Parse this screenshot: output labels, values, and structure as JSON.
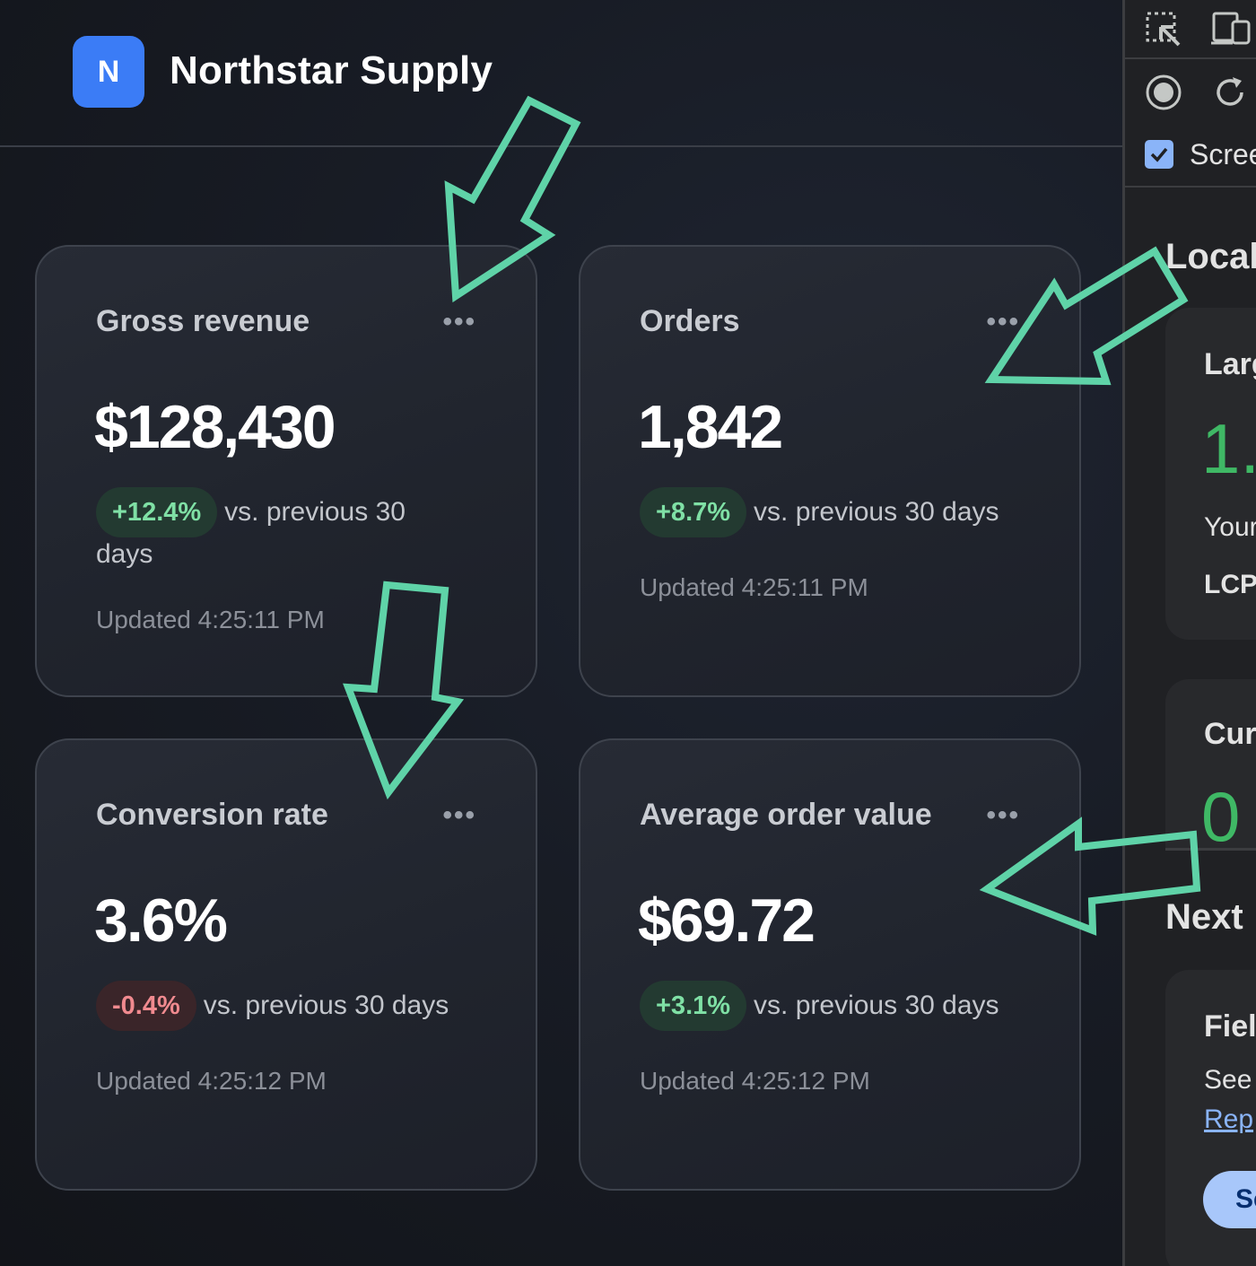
{
  "app": {
    "logo_letter": "N",
    "brand_name": "Northstar Supply",
    "brand_color": "#3b7cf6"
  },
  "cards": [
    {
      "title": "Gross revenue",
      "value": "$128,430",
      "delta": "+12.4%",
      "delta_direction": "positive",
      "comparison": "vs. previous 30 days",
      "updated": "Updated 4:25:11 PM",
      "menu": "•••"
    },
    {
      "title": "Orders",
      "value": "1,842",
      "delta": "+8.7%",
      "delta_direction": "positive",
      "comparison": "vs. previous 30 days",
      "updated": "Updated 4:25:11 PM",
      "menu": "•••"
    },
    {
      "title": "Conversion rate",
      "value": "3.6%",
      "delta": "-0.4%",
      "delta_direction": "negative",
      "comparison": "vs. previous 30 days",
      "updated": "Updated 4:25:12 PM",
      "menu": "•••"
    },
    {
      "title": "Average order value",
      "value": "$69.72",
      "delta": "+3.1%",
      "delta_direction": "positive",
      "comparison": "vs. previous 30 days",
      "updated": "Updated 4:25:12 PM",
      "menu": "•••"
    }
  ],
  "devtools": {
    "toolbar_icons": [
      "select-element-icon",
      "device-toolbar-icon",
      "record-icon",
      "reload-icon"
    ],
    "screenshot_checkbox_label": "Scree",
    "screenshot_checked": true,
    "section_local": "Local",
    "card1_heading": "Larg",
    "card1_metric": "1.",
    "card1_line1": "Your",
    "card1_line2": "LCP",
    "card2_heading": "Cur",
    "card2_metric": "0",
    "section_next": "Next",
    "card3_heading": "Fiel",
    "card3_line1": "See",
    "card3_link": "Rep",
    "card3_button": "Se",
    "metric_color": "#3fb865"
  },
  "annotation_color": "#5fd3a8"
}
